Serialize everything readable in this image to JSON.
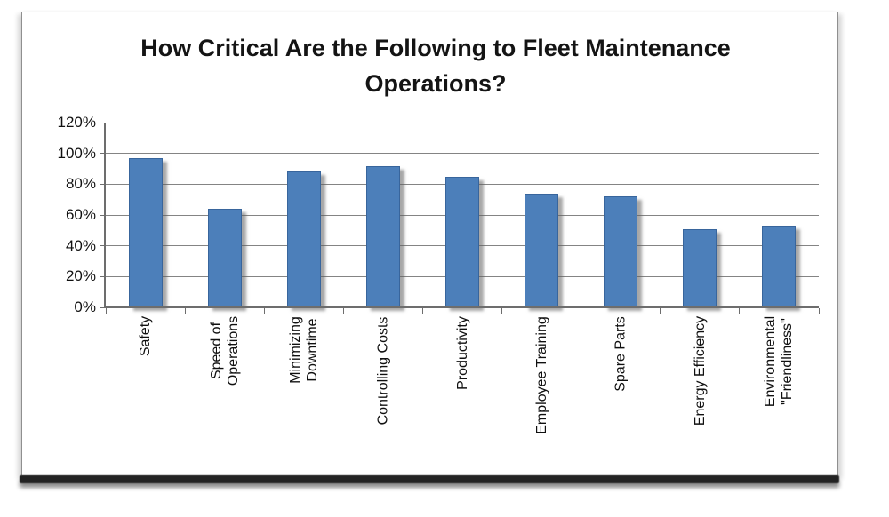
{
  "chart_data": {
    "type": "bar",
    "title": "How Critical Are the Following to Fleet Maintenance\nOperations?",
    "categories": [
      "Safety",
      "Speed of\nOperations",
      "Minimizing\nDowntime",
      "Controlling Costs",
      "Productivity",
      "Employee Training",
      "Spare Parts",
      "Energy Efficiency",
      "Environmental\n\"Friendliness\""
    ],
    "values": [
      97,
      64,
      88,
      92,
      85,
      74,
      72,
      51,
      53
    ],
    "xlabel": "",
    "ylabel": "",
    "ylim": [
      0,
      120
    ],
    "ytick_step": 20,
    "ytick_labels": [
      "0%",
      "20%",
      "40%",
      "60%",
      "80%",
      "100%",
      "120%"
    ],
    "grid": true,
    "legend": "none",
    "category_label_rotation_deg": -90,
    "styles": {
      "bar_color": "#4c7fba",
      "bar_border_color": "#38659c",
      "gridline_color": "#848484",
      "axis_color": "#6d6d6d",
      "text_color": "#101010",
      "frame_border_color": "#8f8f8f",
      "background_color": "#ffffff"
    }
  }
}
